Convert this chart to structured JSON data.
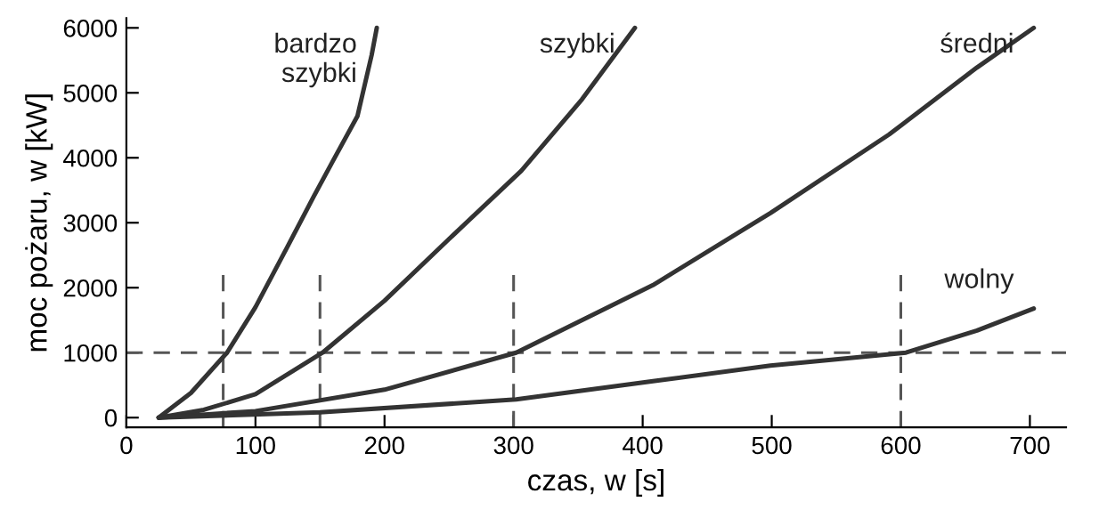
{
  "chart_data": {
    "type": "line",
    "xlabel": "czas, w [s]",
    "ylabel": "moc pożaru, w [kW]",
    "xlim": [
      0,
      728
    ],
    "ylim": [
      -150,
      6150
    ],
    "xticks": [
      0,
      100,
      200,
      300,
      400,
      500,
      600,
      700
    ],
    "yticks": [
      0,
      1000,
      2000,
      3000,
      4000,
      5000,
      6000
    ],
    "grid": false,
    "legend": false,
    "marker": "none",
    "line_style": "solid",
    "series": [
      {
        "name": "bardzo\nszybki",
        "color": "#333333",
        "x": [
          25,
          50,
          78,
          100,
          124,
          145,
          160,
          179,
          190,
          194
        ],
        "values": [
          0,
          380,
          1000,
          1700,
          2600,
          3400,
          3950,
          4640,
          5580,
          6000
        ]
      },
      {
        "name": "szybki",
        "color": "#333333",
        "x": [
          25,
          60,
          100,
          152,
          200,
          250,
          306,
          353,
          394
        ],
        "values": [
          0,
          120,
          360,
          1000,
          1800,
          2750,
          3800,
          4900,
          6000
        ]
      },
      {
        "name": "średni",
        "color": "#333333",
        "x": [
          25,
          100,
          200,
          302,
          408,
          499,
          591,
          659,
          703
        ],
        "values": [
          0,
          100,
          430,
          1000,
          2040,
          3150,
          4360,
          5390,
          6000
        ]
      },
      {
        "name": "wolny",
        "color": "#333333",
        "x": [
          25,
          150,
          302,
          408,
          499,
          604,
          659,
          703
        ],
        "values": [
          0,
          80,
          280,
          560,
          800,
          1000,
          1340,
          1680
        ]
      }
    ],
    "ref_lines": [
      {
        "axis": "y",
        "value": 1000,
        "line_style": "dashed",
        "color": "#555555"
      },
      {
        "axis": "x",
        "value": 75,
        "line_style": "dashed",
        "color": "#555555"
      },
      {
        "axis": "x",
        "value": 150,
        "line_style": "dashed",
        "color": "#555555"
      },
      {
        "axis": "x",
        "value": 300,
        "line_style": "dashed",
        "color": "#555555"
      },
      {
        "axis": "x",
        "value": 600,
        "line_style": "dashed",
        "color": "#555555"
      }
    ]
  }
}
